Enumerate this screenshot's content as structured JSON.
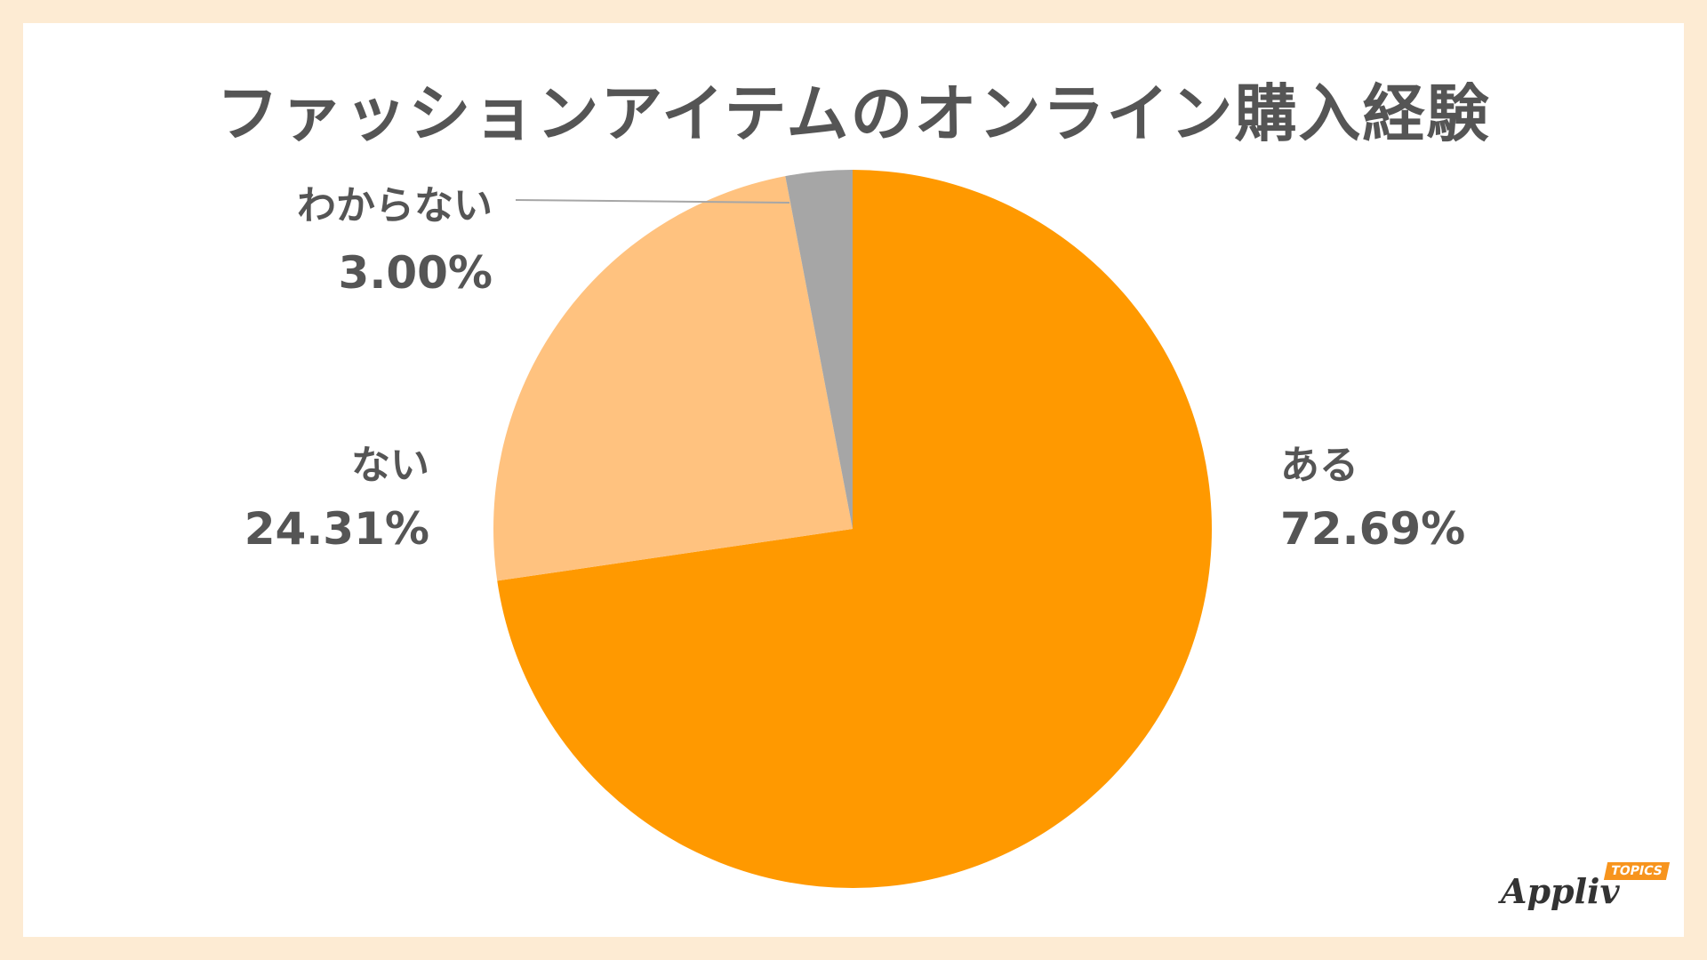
{
  "title": "ファッションアイテムのオンライン購入経験",
  "logo": {
    "name": "Appliv",
    "badge": "TOPICS"
  },
  "chart_data": {
    "type": "pie",
    "title": "ファッションアイテムのオンライン購入経験",
    "start_angle_deg": 0,
    "direction": "clockwise",
    "slices": [
      {
        "label": "ある",
        "value": 72.69,
        "value_label": "72.69%",
        "color": "#ff9900"
      },
      {
        "label": "ない",
        "value": 24.31,
        "value_label": "24.31%",
        "color": "#ffc27f"
      },
      {
        "label": "わからない",
        "value": 3.0,
        "value_label": "3.00%",
        "color": "#a6a6a6"
      }
    ]
  }
}
